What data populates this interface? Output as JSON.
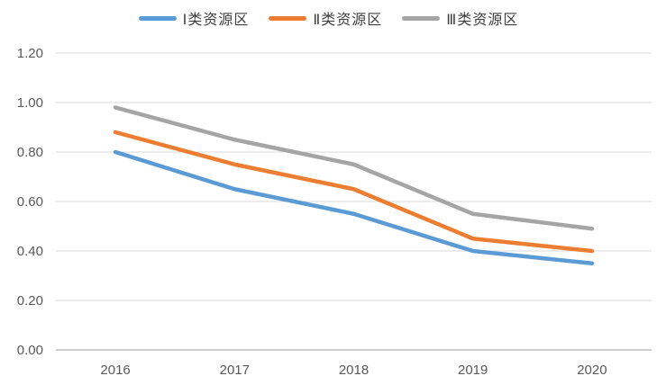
{
  "chart_data": {
    "type": "line",
    "title": "",
    "xlabel": "",
    "ylabel": "",
    "x": [
      "2016",
      "2017",
      "2018",
      "2019",
      "2020"
    ],
    "series": [
      {
        "name": "Ⅰ类资源区",
        "color": "#5B9BD5",
        "values": [
          0.8,
          0.65,
          0.55,
          0.4,
          0.35
        ]
      },
      {
        "name": "Ⅱ类资源区",
        "color": "#ED7D31",
        "values": [
          0.88,
          0.75,
          0.65,
          0.45,
          0.4
        ]
      },
      {
        "name": "Ⅲ类资源区",
        "color": "#A5A5A5",
        "values": [
          0.98,
          0.85,
          0.75,
          0.55,
          0.49
        ]
      }
    ],
    "ylim": [
      0.0,
      1.2
    ],
    "ytick_step": 0.2,
    "ytick_labels": [
      "0.00",
      "0.20",
      "0.40",
      "0.60",
      "0.80",
      "1.00",
      "1.20"
    ],
    "grid": true,
    "legend_position": "top"
  },
  "colors": {
    "background": "#FFFFFF",
    "gridline": "#D9D9D9",
    "axis_line": "#BFBFBF",
    "tick_label": "#595959",
    "legend_text": "#404040"
  }
}
